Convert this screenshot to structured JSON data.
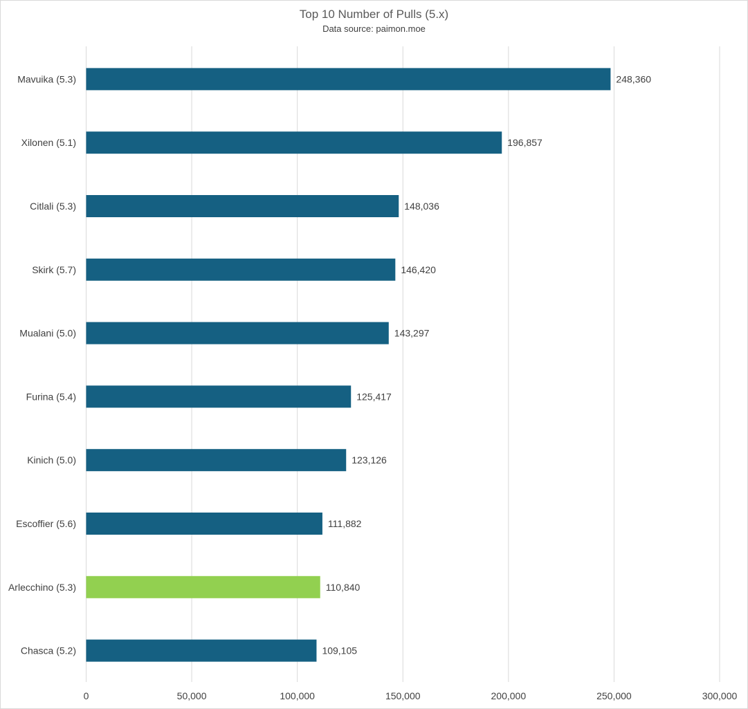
{
  "chart_data": {
    "type": "bar",
    "orientation": "horizontal",
    "title": "Top 10 Number of Pulls (5.x)",
    "subtitle": "Data source: paimon.moe",
    "categories": [
      "Mavuika (5.3)",
      "Xilonen (5.1)",
      "Citlali (5.3)",
      "Skirk (5.7)",
      "Mualani (5.0)",
      "Furina (5.4)",
      "Kinich (5.0)",
      "Escoffier (5.6)",
      "Arlecchino (5.3)",
      "Chasca (5.2)"
    ],
    "values": [
      248360,
      196857,
      148036,
      146420,
      143297,
      125417,
      123126,
      111882,
      110840,
      109105
    ],
    "data_labels": [
      "248,360",
      "196,857",
      "148,036",
      "146,420",
      "143,297",
      "125,417",
      "123,126",
      "111,882",
      "110,840",
      "109,105"
    ],
    "bar_colors": [
      "#156082",
      "#156082",
      "#156082",
      "#156082",
      "#156082",
      "#156082",
      "#156082",
      "#156082",
      "#92D050",
      "#156082"
    ],
    "xlim": [
      0,
      300000
    ],
    "xticks": [
      0,
      50000,
      100000,
      150000,
      200000,
      250000,
      300000
    ],
    "xtick_labels": [
      "0",
      "50,000",
      "100,000",
      "150,000",
      "200,000",
      "250,000",
      "300,000"
    ],
    "xlabel": "",
    "ylabel": "",
    "grid": "vertical",
    "legend": "none",
    "colors": {
      "primary": "#156082",
      "highlight": "#92D050",
      "grid": "#d9d9d9"
    }
  }
}
